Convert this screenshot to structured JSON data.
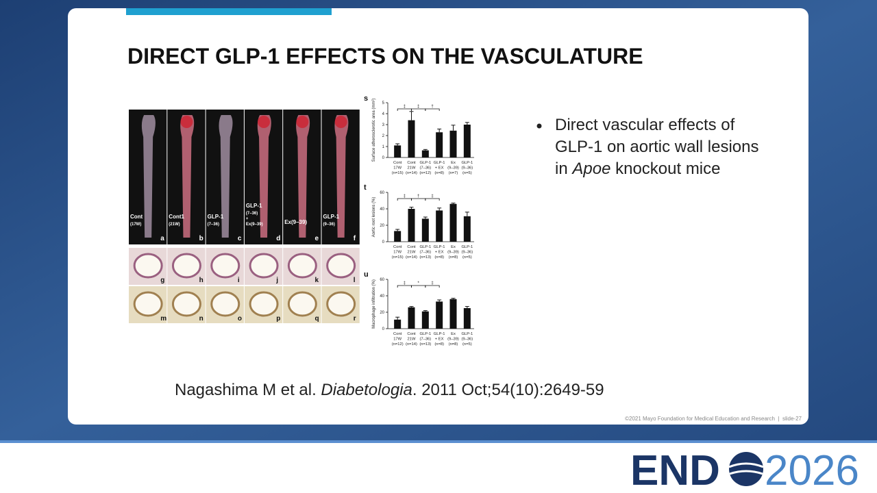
{
  "slide": {
    "title": "DIRECT GLP-1 EFFECTS ON THE VASCULATURE",
    "bullet": {
      "before": "Direct vascular effects of GLP-1 on aortic wall lesions in ",
      "italic": "Apoe",
      "after": " knockout mice"
    },
    "citation": {
      "authors": "Nagashima M et al. ",
      "journal": "Diabetologia",
      "details": ". 2011 Oct;54(10):2649-59"
    },
    "footer": "©2021 Mayo Foundation for Medical Education and Research  |  slide-27"
  },
  "logo": {
    "left": "END",
    "right": "2026"
  },
  "figure": {
    "aorta_panels": [
      {
        "letter": "a",
        "caption": [
          "Cont",
          "(17W)"
        ]
      },
      {
        "letter": "b",
        "caption": [
          "Cont1",
          "(21W)"
        ]
      },
      {
        "letter": "c",
        "caption": [
          "GLP-1",
          "(7–36)"
        ]
      },
      {
        "letter": "d",
        "caption": [
          "GLP-1",
          "(7–36)",
          "+",
          "Ex(9–39)"
        ]
      },
      {
        "letter": "e",
        "caption": [
          "Ex(9–39)"
        ]
      },
      {
        "letter": "f",
        "caption": [
          "GLP-1",
          "(9–36)"
        ]
      }
    ],
    "section_panels": [
      [
        "g",
        "h",
        "i",
        "j",
        "k",
        "l"
      ],
      [
        "m",
        "n",
        "o",
        "p",
        "q",
        "r"
      ]
    ],
    "charts": [
      {
        "type": "bar",
        "letter": "s",
        "ylabel": "Surface atherosclerotic area (mm²)",
        "categories": [
          [
            "Cont",
            "17W",
            "(n=15)"
          ],
          [
            "Cont",
            "21W",
            "(n=14)"
          ],
          [
            "GLP-1",
            "(7–36)",
            "(n=12)"
          ],
          [
            "GLP-1",
            "+ EX",
            "(n=8)"
          ],
          [
            "Ex",
            "(9–39)",
            "(n=7)"
          ],
          [
            "GLP-1",
            "(9–36)",
            "(n=5)"
          ]
        ],
        "values": [
          1.1,
          3.4,
          0.65,
          2.3,
          2.45,
          3.0
        ],
        "errors": [
          0.15,
          0.8,
          0.08,
          0.3,
          0.5,
          0.2
        ],
        "color": "#111111",
        "ylim": [
          0,
          5
        ],
        "yticks": [
          0,
          1,
          2,
          3,
          4,
          5
        ],
        "significance": [
          "‡",
          "‡",
          "†"
        ]
      },
      {
        "type": "bar",
        "letter": "t",
        "ylabel": "Aortic root lesions (%)",
        "categories": [
          [
            "Cont",
            "17W",
            "(n=15)"
          ],
          [
            "Cont",
            "21W",
            "(n=14)"
          ],
          [
            "GLP-1",
            "(7–36)",
            "(n=13)"
          ],
          [
            "GLP-1",
            "+ EX",
            "(n=8)"
          ],
          [
            "Ex",
            "(9–39)",
            "(n=8)"
          ],
          [
            "GLP-1",
            "(9–36)",
            "(n=5)"
          ]
        ],
        "values": [
          13,
          40,
          28,
          38,
          46,
          31
        ],
        "errors": [
          2,
          2,
          2,
          3,
          1,
          5
        ],
        "color": "#111111",
        "ylim": [
          0,
          60
        ],
        "yticks": [
          0,
          20,
          40,
          60
        ],
        "significance": [
          "‡",
          "†",
          "‡"
        ]
      },
      {
        "type": "bar",
        "letter": "u",
        "ylabel": "Macrophage infiltration (%)",
        "categories": [
          [
            "Cont",
            "17W",
            "(n=12)"
          ],
          [
            "Cont",
            "21W",
            "(n=14)"
          ],
          [
            "GLP-1",
            "(7–36)",
            "(n=13)"
          ],
          [
            "GLP-1",
            "+ EX",
            "(n=8)"
          ],
          [
            "Ex",
            "(9–39)",
            "(n=8)"
          ],
          [
            "GLP-1",
            "(9–36)",
            "(n=5)"
          ]
        ],
        "values": [
          11,
          26,
          21,
          33,
          36,
          25
        ],
        "errors": [
          3,
          1,
          1,
          2,
          1,
          2
        ],
        "color": "#111111",
        "ylim": [
          0,
          60
        ],
        "yticks": [
          0,
          20,
          40,
          60
        ],
        "significance": [
          "‡",
          "*",
          "‡"
        ]
      }
    ]
  }
}
